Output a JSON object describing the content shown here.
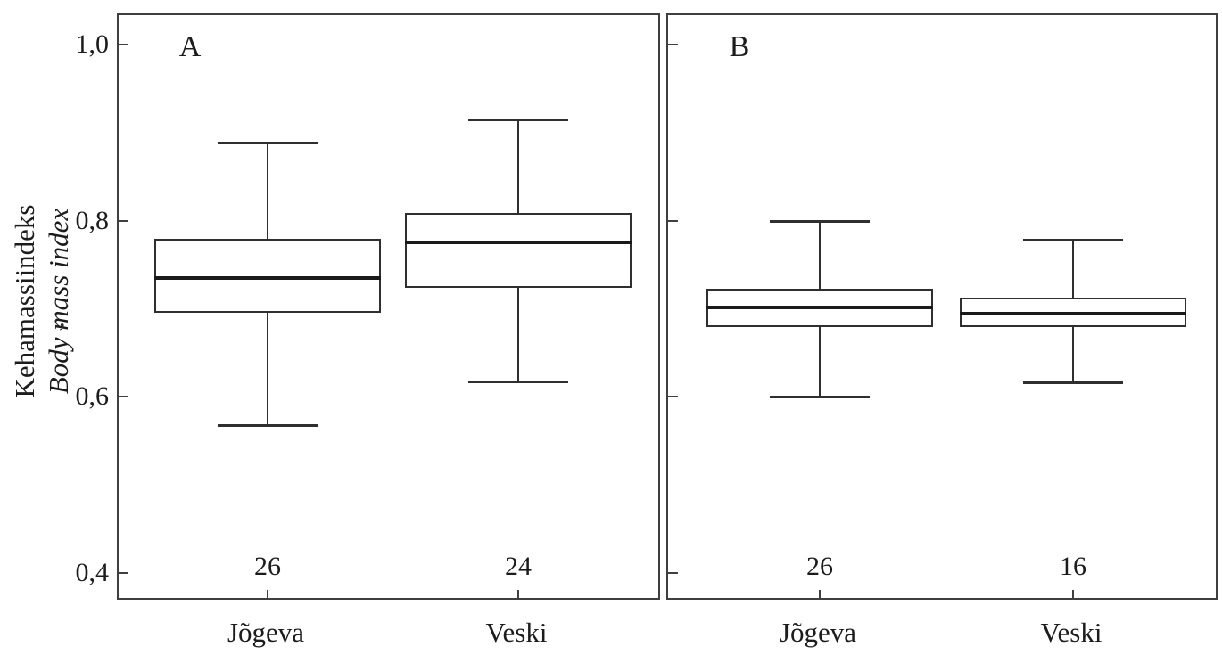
{
  "figure": {
    "y_axis": {
      "label_primary": "Kehamassiindeks",
      "label_secondary": "Body mass index",
      "stray_mark": ","
    }
  },
  "chart_data": {
    "type": "boxplot",
    "title": "",
    "ylabel_primary": "Kehamassiindeks",
    "ylabel_secondary": "Body mass index",
    "ylim": [
      0.372,
      1.033
    ],
    "yticks": [
      1.0,
      0.8,
      0.6,
      0.4
    ],
    "ytick_labels": [
      "1,0",
      "0,8",
      "0,6",
      "0,4"
    ],
    "grid": false,
    "legend": "none",
    "colors": {
      "line": "#2f2f2f",
      "median": "#1a1a1a",
      "background": "#ffffff"
    },
    "panels": [
      {
        "label": "A",
        "categories": [
          "Jõgeva",
          "Veski"
        ],
        "counts": [
          "26",
          "24"
        ],
        "series": [
          {
            "category": "Jõgeva",
            "n": 26,
            "whisker_low": 0.568,
            "q1": 0.695,
            "median": 0.735,
            "q3": 0.779,
            "whisker_high": 0.888
          },
          {
            "category": "Veski",
            "n": 24,
            "whisker_low": 0.618,
            "q1": 0.724,
            "median": 0.775,
            "q3": 0.809,
            "whisker_high": 0.915
          }
        ]
      },
      {
        "label": "B",
        "categories": [
          "Jõgeva",
          "Veski"
        ],
        "counts": [
          "26",
          "16"
        ],
        "series": [
          {
            "category": "Jõgeva",
            "n": 26,
            "whisker_low": 0.6,
            "q1": 0.679,
            "median": 0.701,
            "q3": 0.723,
            "whisker_high": 0.8
          },
          {
            "category": "Veski",
            "n": 16,
            "whisker_low": 0.617,
            "q1": 0.679,
            "median": 0.694,
            "q3": 0.713,
            "whisker_high": 0.778
          }
        ]
      }
    ]
  }
}
